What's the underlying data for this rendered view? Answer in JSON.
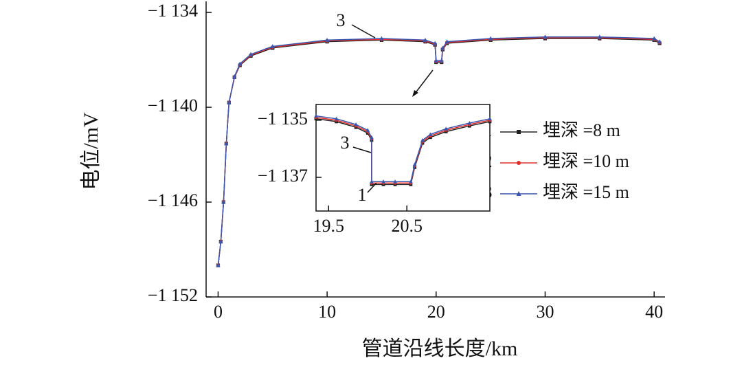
{
  "chart_data": [
    {
      "type": "line",
      "xlabel": "管道沿线长度/km",
      "ylabel": "电位/mV",
      "x": [
        0,
        0.25,
        0.5,
        0.75,
        1,
        1.5,
        2,
        3,
        5,
        10,
        15,
        19,
        19.9,
        20.0,
        20.5,
        20.6,
        21,
        25,
        30,
        35,
        40,
        40.5
      ],
      "series": [
        {
          "id": "1",
          "name": "埋深 =8 m",
          "color": "#222222",
          "marker": "square",
          "values": [
            -1150.0,
            -1148.5,
            -1146.0,
            -1142.3,
            -1139.7,
            -1138.1,
            -1137.35,
            -1136.75,
            -1136.25,
            -1135.85,
            -1135.75,
            -1135.85,
            -1136.05,
            -1137.15,
            -1137.15,
            -1136.35,
            -1135.95,
            -1135.75,
            -1135.65,
            -1135.65,
            -1135.75,
            -1135.95
          ]
        },
        {
          "id": "2",
          "name": "埋深 =10 m",
          "color": "#e0302a",
          "marker": "circle",
          "values": [
            -1150.0,
            -1148.5,
            -1146.0,
            -1142.3,
            -1139.7,
            -1138.1,
            -1137.3,
            -1136.7,
            -1136.2,
            -1135.8,
            -1135.7,
            -1135.8,
            -1136.0,
            -1137.1,
            -1137.1,
            -1136.3,
            -1135.9,
            -1135.7,
            -1135.6,
            -1135.6,
            -1135.7,
            -1135.9
          ]
        },
        {
          "id": "3",
          "name": "埋深 =15 m",
          "color": "#3a56b0",
          "marker": "triangle",
          "values": [
            -1150.0,
            -1148.5,
            -1146.0,
            -1142.3,
            -1139.7,
            -1138.05,
            -1137.25,
            -1136.65,
            -1136.15,
            -1135.75,
            -1135.65,
            -1135.75,
            -1135.95,
            -1137.05,
            -1137.05,
            -1136.25,
            -1135.85,
            -1135.65,
            -1135.55,
            -1135.55,
            -1135.65,
            -1135.85
          ]
        }
      ],
      "xlim": [
        -1.1,
        41
      ],
      "ylim": [
        -1152,
        -1133.3
      ],
      "xticks": [
        0,
        10,
        20,
        30,
        40
      ],
      "yticks": [
        {
          "value": -1134,
          "label": "−1 134"
        },
        {
          "value": -1140,
          "label": "−1 140"
        },
        {
          "value": -1146,
          "label": "−1 146"
        },
        {
          "value": -1152,
          "label": "−1 152"
        }
      ],
      "annotations": [
        {
          "text": "3"
        }
      ]
    },
    {
      "type": "line",
      "x": [
        19.34,
        19.6,
        19.85,
        20.0,
        20.05,
        20.05,
        20.2,
        20.35,
        20.55,
        20.6,
        20.7,
        20.8,
        21.0,
        21.3,
        21.56
      ],
      "series": [
        {
          "color": "#222222",
          "marker": "square",
          "values": [
            -1134.95,
            -1135.05,
            -1135.25,
            -1135.45,
            -1135.7,
            -1137.25,
            -1137.25,
            -1137.25,
            -1137.25,
            -1136.65,
            -1135.8,
            -1135.6,
            -1135.4,
            -1135.2,
            -1135.05
          ]
        },
        {
          "color": "#e0302a",
          "marker": "circle",
          "values": [
            -1134.9,
            -1135.0,
            -1135.2,
            -1135.4,
            -1135.65,
            -1137.2,
            -1137.2,
            -1137.2,
            -1137.2,
            -1136.6,
            -1135.75,
            -1135.55,
            -1135.35,
            -1135.15,
            -1135.0
          ]
        },
        {
          "color": "#3a56b0",
          "marker": "triangle",
          "values": [
            -1134.85,
            -1134.95,
            -1135.15,
            -1135.35,
            -1135.6,
            -1137.15,
            -1137.15,
            -1137.15,
            -1137.15,
            -1136.55,
            -1135.7,
            -1135.5,
            -1135.3,
            -1135.1,
            -1134.95
          ]
        }
      ],
      "xlim": [
        19.34,
        21.56
      ],
      "ylim": [
        -1138.18,
        -1134.45
      ],
      "xticks": [
        19.5,
        20.5
      ],
      "yticks": [
        {
          "value": -1135,
          "label": "−1 135"
        },
        {
          "value": -1137,
          "label": "−1 137"
        }
      ],
      "annotations": [
        {
          "text": "3"
        },
        {
          "text": "1"
        }
      ]
    }
  ]
}
